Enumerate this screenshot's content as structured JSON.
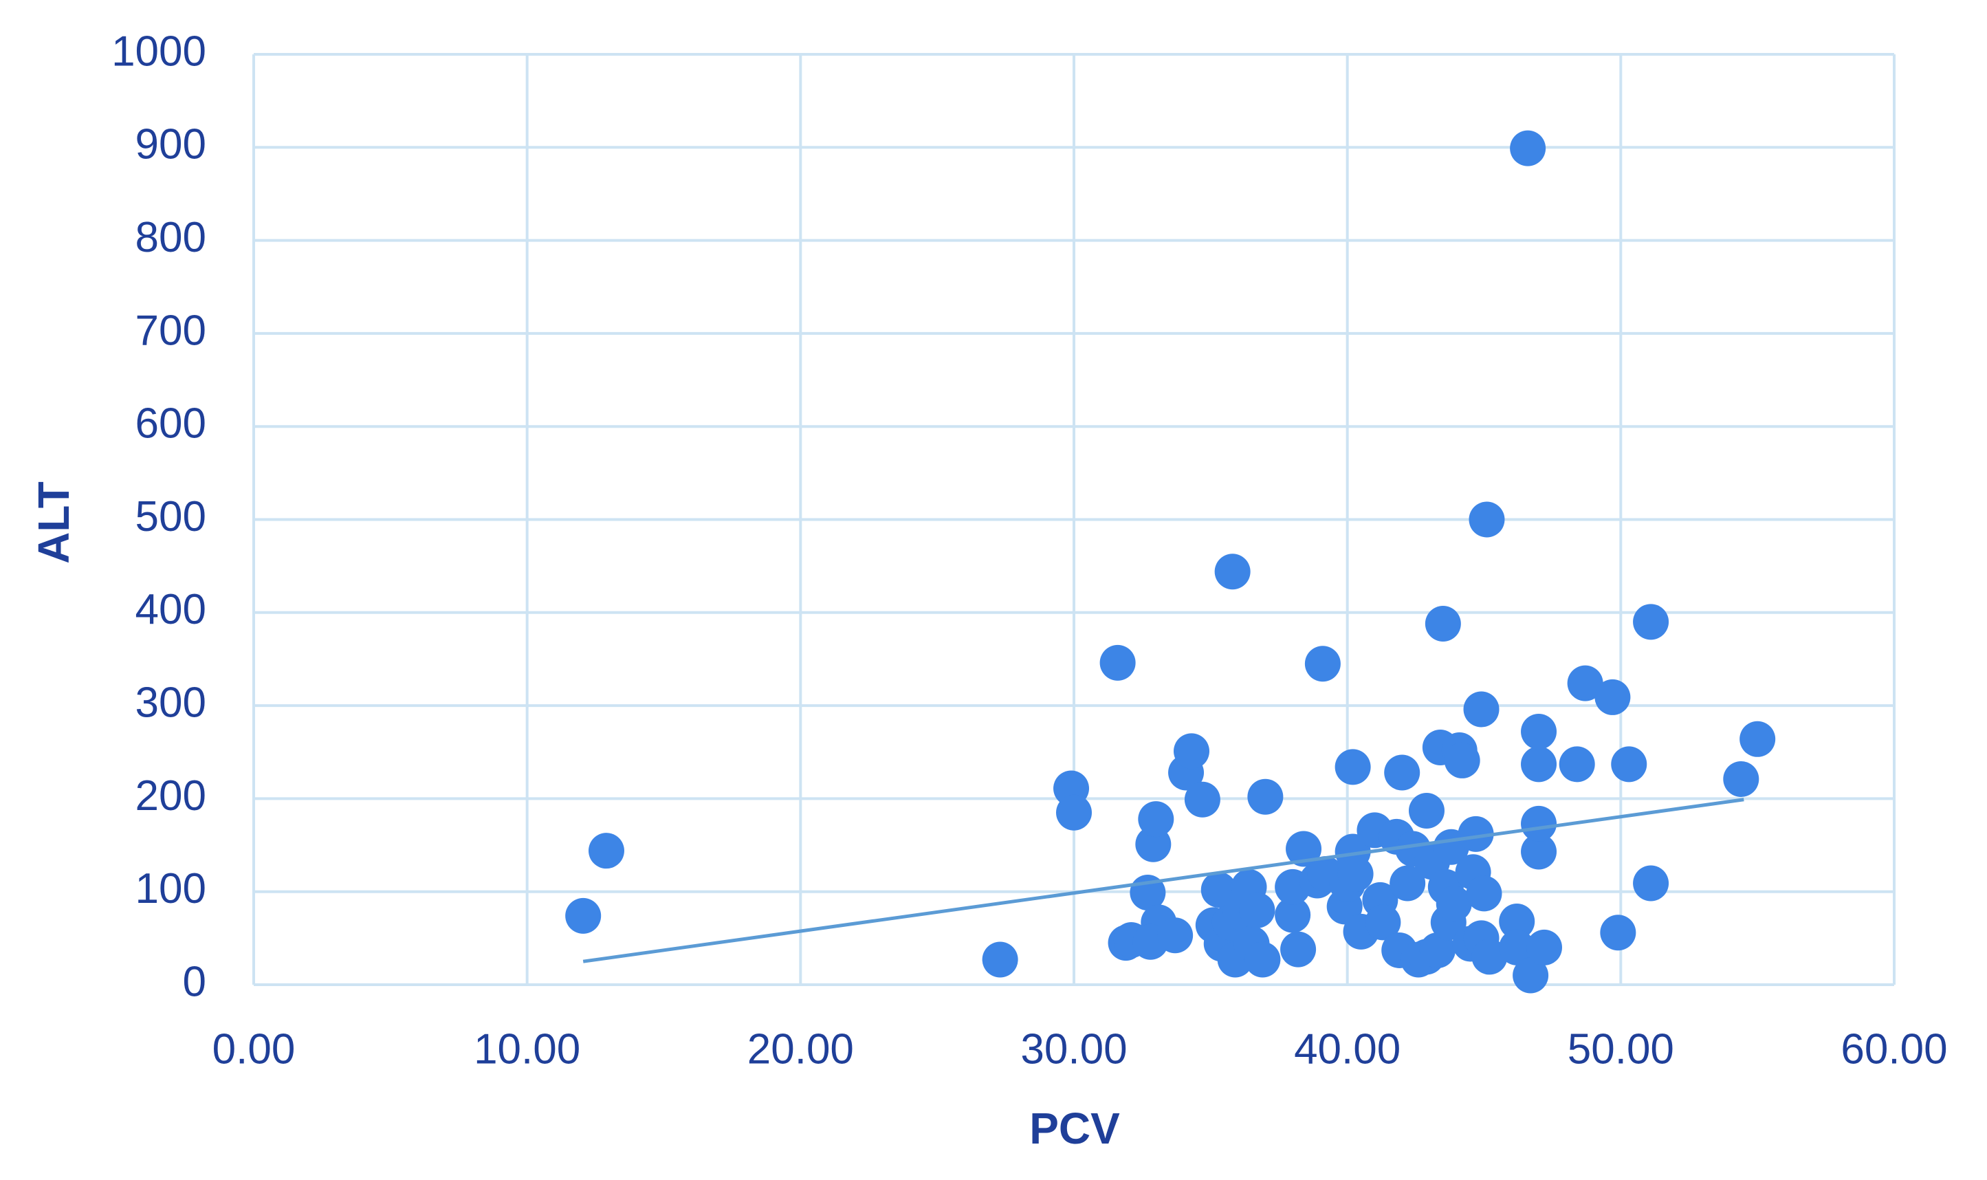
{
  "chart_data": {
    "type": "scatter",
    "x_label": "PCV",
    "y_label": "ALT",
    "xlim": [
      0,
      60
    ],
    "ylim": [
      0,
      1000
    ],
    "xticks": [
      {
        "value": 0,
        "label": "0.00"
      },
      {
        "value": 10,
        "label": "10.00"
      },
      {
        "value": 20,
        "label": "20.00"
      },
      {
        "value": 30,
        "label": "30.00"
      },
      {
        "value": 40,
        "label": "40.00"
      },
      {
        "value": 50,
        "label": "50.00"
      },
      {
        "value": 60,
        "label": "60.00"
      }
    ],
    "yticks": [
      0,
      100,
      200,
      300,
      400,
      500,
      600,
      700,
      800,
      900,
      1000
    ],
    "grid": true,
    "color": "#3d85e6",
    "trendline_color": "#5b9bd5",
    "x": [
      12.05,
      12.9,
      27.3,
      29.9,
      30.0,
      31.6,
      31.9,
      32.1,
      32.7,
      32.9,
      33.0,
      33.1,
      32.8,
      33.7,
      34.1,
      34.3,
      34.7,
      35.1,
      35.3,
      35.4,
      35.8,
      35.7,
      35.9,
      36.1,
      36.4,
      36.5,
      36.7,
      36.9,
      37.0,
      38.0,
      38.0,
      38.2,
      38.4,
      38.9,
      39.1,
      39.2,
      39.9,
      40.0,
      40.2,
      40.2,
      40.3,
      40.5,
      41.0,
      41.2,
      41.3,
      41.8,
      41.9,
      42.0,
      42.2,
      42.4,
      42.6,
      42.9,
      42.9,
      43.1,
      43.3,
      43.4,
      43.5,
      43.6,
      43.7,
      43.8,
      43.9,
      44.1,
      44.2,
      44.5,
      44.6,
      44.7,
      44.9,
      44.9,
      45.0,
      45.1,
      45.2,
      46.2,
      46.2,
      46.6,
      46.7,
      47.0,
      47.0,
      47.0,
      47.0,
      47.2,
      48.4,
      48.7,
      49.7,
      49.9,
      50.3,
      51.1,
      51.1,
      54.4,
      55.0
    ],
    "y": [
      74,
      144,
      27,
      211,
      185,
      346,
      45,
      48,
      99,
      151,
      178,
      67,
      46,
      53,
      228,
      251,
      199,
      64,
      102,
      44,
      444,
      67,
      27,
      78,
      105,
      44,
      80,
      27,
      202,
      75,
      105,
      38,
      146,
      112,
      345,
      119,
      84,
      108,
      234,
      143,
      119,
      57,
      166,
      91,
      67,
      159,
      37,
      228,
      109,
      146,
      27,
      30,
      187,
      132,
      37,
      255,
      388,
      105,
      67,
      148,
      87,
      252,
      241,
      44,
      121,
      162,
      296,
      50,
      98,
      500,
      30,
      68,
      40,
      899,
      10,
      143,
      173,
      237,
      272,
      40,
      237,
      324,
      309,
      56,
      237,
      390,
      109,
      221,
      264
    ],
    "trendline": {
      "x": [
        12.05,
        54.5
      ],
      "y": [
        25,
        199
      ]
    }
  }
}
